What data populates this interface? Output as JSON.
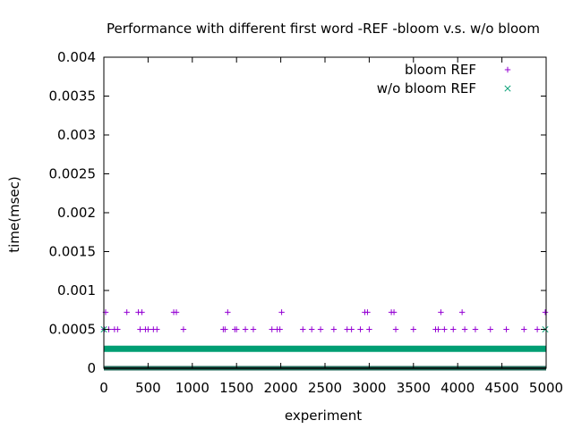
{
  "chart_data": {
    "type": "scatter",
    "title": "Performance with different first word -REF -bloom v.s. w/o bloom",
    "xlabel": "experiment",
    "ylabel": "time(msec)",
    "xlim": [
      0,
      5000
    ],
    "ylim": [
      0,
      0.004
    ],
    "x_ticks": [
      "0",
      "500",
      "1000",
      "1500",
      "2000",
      "2500",
      "3000",
      "3500",
      "4000",
      "4500",
      "5000"
    ],
    "y_ticks": [
      "0",
      "0.0005",
      "0.001",
      "0.0015",
      "0.002",
      "0.0025",
      "0.003",
      "0.0035",
      "0.004"
    ],
    "grid": false,
    "legend_position": "top-right",
    "series": [
      {
        "name": "bloom REF",
        "marker": "plus",
        "color": "#9400d3",
        "dense_levels": [
          0,
          0.00025
        ],
        "points": [
          [
            5,
            0.0005
          ],
          [
            20,
            0.00072
          ],
          [
            55,
            0.0005
          ],
          [
            120,
            0.0005
          ],
          [
            155,
            0.0005
          ],
          [
            260,
            0.00072
          ],
          [
            390,
            0.00072
          ],
          [
            410,
            0.0005
          ],
          [
            430,
            0.00072
          ],
          [
            470,
            0.0005
          ],
          [
            500,
            0.0005
          ],
          [
            560,
            0.0005
          ],
          [
            600,
            0.0005
          ],
          [
            790,
            0.00072
          ],
          [
            820,
            0.00072
          ],
          [
            900,
            0.0005
          ],
          [
            1350,
            0.0005
          ],
          [
            1370,
            0.0005
          ],
          [
            1400,
            0.00072
          ],
          [
            1480,
            0.0005
          ],
          [
            1500,
            0.0005
          ],
          [
            1600,
            0.0005
          ],
          [
            1690,
            0.0005
          ],
          [
            1900,
            0.0005
          ],
          [
            1960,
            0.0005
          ],
          [
            1990,
            0.0005
          ],
          [
            2010,
            0.00072
          ],
          [
            2250,
            0.0005
          ],
          [
            2350,
            0.0005
          ],
          [
            2450,
            0.0005
          ],
          [
            2600,
            0.0005
          ],
          [
            2750,
            0.0005
          ],
          [
            2800,
            0.0005
          ],
          [
            2900,
            0.0005
          ],
          [
            2950,
            0.00072
          ],
          [
            2980,
            0.00072
          ],
          [
            3000,
            0.0005
          ],
          [
            3250,
            0.00072
          ],
          [
            3280,
            0.00072
          ],
          [
            3300,
            0.0005
          ],
          [
            3500,
            0.0005
          ],
          [
            3750,
            0.0005
          ],
          [
            3780,
            0.0005
          ],
          [
            3810,
            0.00072
          ],
          [
            3850,
            0.0005
          ],
          [
            3950,
            0.0005
          ],
          [
            4050,
            0.00072
          ],
          [
            4080,
            0.0005
          ],
          [
            4200,
            0.0005
          ],
          [
            4370,
            0.0005
          ],
          [
            4550,
            0.0005
          ],
          [
            4750,
            0.0005
          ],
          [
            4900,
            0.0005
          ],
          [
            4990,
            0.00072
          ]
        ]
      },
      {
        "name": "w/o bloom REF",
        "marker": "cross",
        "color": "#009e73",
        "dense_levels": [
          0,
          0.00025
        ],
        "points": [
          [
            0,
            0.0005
          ],
          [
            30,
            0.00025
          ],
          [
            4990,
            0.0005
          ]
        ]
      }
    ]
  }
}
